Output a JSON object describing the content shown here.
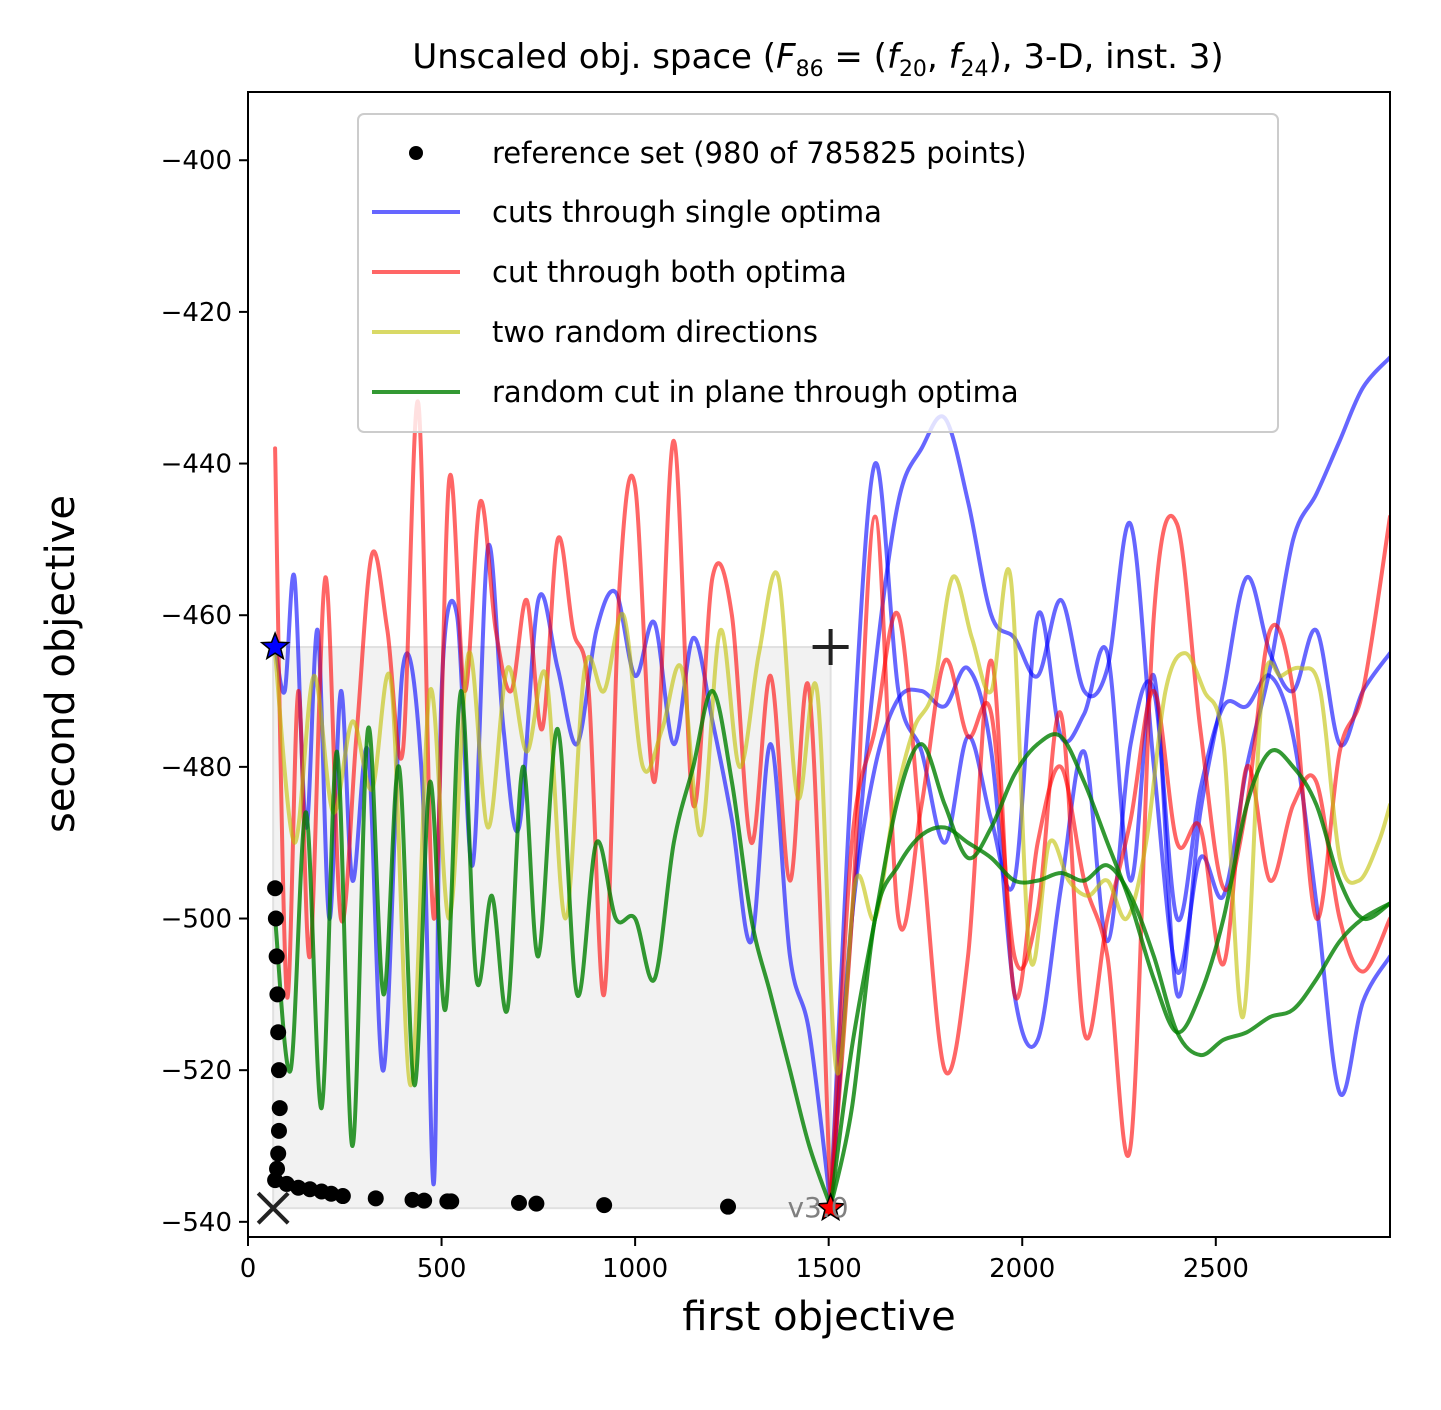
{
  "chart_data": {
    "type": "line",
    "title_prefix": "Unscaled obj. space (",
    "title_func": "F",
    "title_func_sub": "86",
    "title_eq": " = (",
    "title_f1": "f",
    "title_f1_sub": "20",
    "title_sep": ", ",
    "title_f2": "f",
    "title_f2_sub": "24",
    "title_suffix": "), 3-D, inst. 3)",
    "xlabel": "first objective",
    "ylabel": "second objective",
    "xlim": [
      0,
      2950
    ],
    "ylim": [
      -542,
      -391
    ],
    "xticks": [
      0,
      500,
      1000,
      1500,
      2000,
      2500
    ],
    "yticks": [
      -540,
      -520,
      -500,
      -480,
      -460,
      -440,
      -420,
      -400
    ],
    "grid": false,
    "legend_position": "top-right",
    "legend": [
      {
        "label": "reference set (980 of 785825 points)",
        "kind": "marker",
        "color": "#000000"
      },
      {
        "label": "cuts through single optima",
        "kind": "line",
        "color": "#0000ff"
      },
      {
        "label": "cut through both optima",
        "kind": "line",
        "color": "#ff0000"
      },
      {
        "label": "two random directions",
        "kind": "line",
        "color": "#bfbf00"
      },
      {
        "label": "random cut in plane through optima",
        "kind": "line",
        "color": "#008000"
      }
    ],
    "watermark": "v3.0",
    "nadir_box": {
      "x": [
        65,
        1505
      ],
      "y": [
        -538.2,
        -464.2
      ]
    },
    "optimum_1": {
      "x": 70,
      "y": -464.2
    },
    "optimum_2": {
      "x": 1505,
      "y": -538.2
    },
    "nadir_marker": {
      "x": 1505,
      "y": -464.2
    },
    "ideal_marker": {
      "x": 65,
      "y": -538.2
    },
    "reference_set": [
      [
        70,
        -534.5
      ],
      [
        75,
        -533
      ],
      [
        78,
        -531
      ],
      [
        80,
        -528
      ],
      [
        82,
        -525
      ],
      [
        80,
        -520
      ],
      [
        78,
        -515
      ],
      [
        76,
        -510
      ],
      [
        74,
        -505
      ],
      [
        72,
        -500
      ],
      [
        70,
        -496
      ],
      [
        100,
        -535
      ],
      [
        130,
        -535.5
      ],
      [
        160,
        -535.7
      ],
      [
        190,
        -536
      ],
      [
        215,
        -536.3
      ],
      [
        245,
        -536.6
      ],
      [
        330,
        -536.9
      ],
      [
        425,
        -537.1
      ],
      [
        455,
        -537.2
      ],
      [
        515,
        -537.3
      ],
      [
        525,
        -537.3
      ],
      [
        700,
        -537.5
      ],
      [
        745,
        -537.6
      ],
      [
        920,
        -537.8
      ],
      [
        1240,
        -538
      ]
    ],
    "series": [
      {
        "name": "cuts through single optima",
        "color": "#0000ff",
        "width": 4,
        "opacity": 0.6,
        "x": [
          70,
          95,
          120,
          150,
          180,
          210,
          240,
          270,
          310,
          350,
          400,
          450,
          480,
          500,
          540,
          580,
          620,
          660,
          700,
          750,
          800,
          850,
          900,
          950,
          1000,
          1050,
          1100,
          1150,
          1200,
          1250,
          1300,
          1350,
          1400,
          1450,
          1505
        ],
        "y": [
          -464,
          -470,
          -455,
          -488,
          -462,
          -500,
          -470,
          -495,
          -478,
          -520,
          -467,
          -482,
          -535,
          -470,
          -460,
          -493,
          -451,
          -475,
          -488,
          -458,
          -467,
          -477,
          -462,
          -457,
          -468,
          -461,
          -477,
          -463,
          -474,
          -487,
          -503,
          -477,
          -505,
          -515,
          -538
        ]
      },
      {
        "name": "cuts through single optima",
        "color": "#0000ff",
        "width": 4,
        "opacity": 0.6,
        "x": [
          1505,
          1560,
          1620,
          1680,
          1740,
          1800,
          1860,
          1920,
          1980,
          2040,
          2100,
          2160,
          2220,
          2280,
          2340,
          2400,
          2460,
          2520,
          2580,
          2640,
          2700,
          2760,
          2820,
          2880,
          2950
        ],
        "y": [
          -538,
          -500,
          -467,
          -445,
          -438,
          -434,
          -445,
          -460,
          -463,
          -468,
          -458,
          -470,
          -467,
          -448,
          -480,
          -507,
          -492,
          -497,
          -480,
          -467,
          -450,
          -444,
          -437,
          -430,
          -426
        ]
      },
      {
        "name": "cuts through single optima",
        "color": "#0000ff",
        "width": 4,
        "opacity": 0.6,
        "x": [
          1505,
          1560,
          1620,
          1680,
          1740,
          1800,
          1860,
          1920,
          1980,
          2040,
          2100,
          2160,
          2220,
          2280,
          2340,
          2400,
          2460,
          2520,
          2580,
          2640,
          2700,
          2760,
          2820,
          2880,
          2950
        ],
        "y": [
          -538,
          -480,
          -440,
          -470,
          -478,
          -490,
          -476,
          -487,
          -495,
          -460,
          -476,
          -473,
          -465,
          -495,
          -468,
          -510,
          -486,
          -470,
          -455,
          -465,
          -470,
          -462,
          -477,
          -470,
          -465
        ]
      },
      {
        "name": "cuts through single optima",
        "color": "#0000ff",
        "width": 4,
        "opacity": 0.6,
        "x": [
          1505,
          1560,
          1620,
          1680,
          1740,
          1800,
          1860,
          1920,
          1980,
          2040,
          2100,
          2160,
          2220,
          2280,
          2340,
          2400,
          2460,
          2520,
          2580,
          2640,
          2700,
          2760,
          2820,
          2880,
          2950
        ],
        "y": [
          -538,
          -500,
          -480,
          -471,
          -470,
          -472,
          -467,
          -478,
          -510,
          -516,
          -496,
          -478,
          -503,
          -477,
          -470,
          -500,
          -483,
          -472,
          -472,
          -468,
          -476,
          -498,
          -523,
          -511,
          -505
        ]
      },
      {
        "name": "cut through both optima",
        "color": "#ff0000",
        "width": 4,
        "opacity": 0.6,
        "x": [
          70,
          100,
          130,
          160,
          200,
          240,
          280,
          320,
          360,
          400,
          440,
          480,
          520,
          560,
          600,
          640,
          680,
          720,
          760,
          800,
          840,
          880,
          920,
          960,
          1000,
          1050,
          1100,
          1150,
          1200,
          1250,
          1300,
          1350,
          1400,
          1450,
          1505
        ],
        "y": [
          -438,
          -510,
          -470,
          -505,
          -455,
          -500,
          -476,
          -452,
          -462,
          -478,
          -432,
          -500,
          -442,
          -470,
          -445,
          -462,
          -470,
          -458,
          -475,
          -450,
          -462,
          -470,
          -510,
          -456,
          -443,
          -482,
          -437,
          -485,
          -455,
          -460,
          -490,
          -468,
          -495,
          -470,
          -538
        ]
      },
      {
        "name": "cut through both optima",
        "color": "#ff0000",
        "width": 4,
        "opacity": 0.6,
        "x": [
          1505,
          1560,
          1620,
          1680,
          1740,
          1800,
          1860,
          1920,
          1980,
          2040,
          2100,
          2160,
          2220,
          2280,
          2340,
          2400,
          2460,
          2520,
          2580,
          2640,
          2700,
          2760,
          2820,
          2880,
          2950
        ],
        "y": [
          -538,
          -490,
          -475,
          -460,
          -490,
          -520,
          -505,
          -466,
          -510,
          -490,
          -480,
          -495,
          -505,
          -530,
          -460,
          -448,
          -475,
          -496,
          -485,
          -462,
          -470,
          -500,
          -478,
          -470,
          -447
        ]
      },
      {
        "name": "cut through both optima",
        "color": "#ff0000",
        "width": 4,
        "opacity": 0.6,
        "x": [
          1505,
          1560,
          1620,
          1680,
          1740,
          1800,
          1860,
          1920,
          1980,
          2040,
          2100,
          2160,
          2220,
          2280,
          2340,
          2400,
          2460,
          2520,
          2580,
          2640,
          2700,
          2760,
          2820,
          2880,
          2950
        ],
        "y": [
          -538,
          -500,
          -447,
          -500,
          -485,
          -466,
          -476,
          -473,
          -505,
          -499,
          -473,
          -515,
          -500,
          -487,
          -470,
          -490,
          -488,
          -506,
          -480,
          -495,
          -485,
          -482,
          -500,
          -507,
          -500
        ]
      },
      {
        "name": "two random directions",
        "color": "#bfbf00",
        "width": 4,
        "opacity": 0.6,
        "x": [
          70,
          120,
          170,
          220,
          270,
          320,
          370,
          420,
          470,
          520,
          570,
          620,
          670,
          720,
          770,
          820,
          870,
          920,
          970,
          1020,
          1070,
          1120,
          1170,
          1220,
          1270,
          1320,
          1370,
          1420,
          1470,
          1520,
          1570,
          1620,
          1670,
          1720,
          1770,
          1820,
          1870,
          1920,
          1970,
          2020,
          2070,
          2120,
          2170,
          2220,
          2270,
          2320,
          2370,
          2420,
          2470,
          2520,
          2570,
          2620,
          2670,
          2720,
          2770,
          2820,
          2870,
          2920,
          2950
        ],
        "y": [
          -465,
          -490,
          -468,
          -486,
          -474,
          -483,
          -469,
          -522,
          -470,
          -500,
          -465,
          -488,
          -467,
          -478,
          -468,
          -500,
          -467,
          -470,
          -460,
          -480,
          -475,
          -467,
          -489,
          -462,
          -480,
          -465,
          -455,
          -484,
          -470,
          -520,
          -495,
          -500,
          -485,
          -475,
          -470,
          -455,
          -463,
          -470,
          -455,
          -505,
          -490,
          -495,
          -497,
          -495,
          -500,
          -490,
          -470,
          -465,
          -470,
          -477,
          -513,
          -470,
          -468,
          -467,
          -470,
          -492,
          -495,
          -490,
          -485
        ]
      },
      {
        "name": "random cut in plane through optima",
        "color": "#008000",
        "width": 4,
        "opacity": 0.8,
        "x": [
          70,
          110,
          150,
          190,
          230,
          270,
          310,
          350,
          390,
          430,
          470,
          510,
          550,
          590,
          630,
          670,
          710,
          750,
          800,
          850,
          900,
          950,
          1000,
          1050,
          1100,
          1150,
          1200,
          1250,
          1300,
          1350,
          1400,
          1450,
          1505
        ],
        "y": [
          -500,
          -520,
          -486,
          -525,
          -478,
          -530,
          -475,
          -510,
          -480,
          -522,
          -482,
          -512,
          -470,
          -508,
          -497,
          -512,
          -480,
          -505,
          -475,
          -510,
          -490,
          -500,
          -500,
          -508,
          -490,
          -480,
          -470,
          -482,
          -500,
          -510,
          -520,
          -530,
          -538
        ]
      },
      {
        "name": "random cut in plane through optima",
        "color": "#008000",
        "width": 4,
        "opacity": 0.8,
        "x": [
          1505,
          1560,
          1620,
          1680,
          1740,
          1800,
          1860,
          1920,
          1980,
          2040,
          2100,
          2160,
          2220,
          2280,
          2340,
          2400,
          2460,
          2520,
          2580,
          2640,
          2700,
          2760,
          2820,
          2880,
          2950
        ],
        "y": [
          -538,
          -517,
          -500,
          -484,
          -477,
          -485,
          -492,
          -488,
          -481,
          -477,
          -476,
          -482,
          -490,
          -498,
          -508,
          -515,
          -510,
          -500,
          -485,
          -478,
          -480,
          -485,
          -495,
          -500,
          -498
        ]
      },
      {
        "name": "random cut in plane through optima",
        "color": "#008000",
        "width": 4,
        "opacity": 0.8,
        "x": [
          1505,
          1560,
          1620,
          1680,
          1740,
          1800,
          1860,
          1920,
          1980,
          2040,
          2100,
          2160,
          2220,
          2280,
          2340,
          2400,
          2460,
          2520,
          2580,
          2640,
          2700,
          2760,
          2820,
          2880,
          2950
        ],
        "y": [
          -538,
          -525,
          -500,
          -493,
          -489,
          -488,
          -490,
          -492,
          -495,
          -495,
          -494,
          -495,
          -493,
          -497,
          -505,
          -515,
          -518,
          -516,
          -515,
          -513,
          -512,
          -508,
          -503,
          -500,
          -498
        ]
      }
    ]
  }
}
